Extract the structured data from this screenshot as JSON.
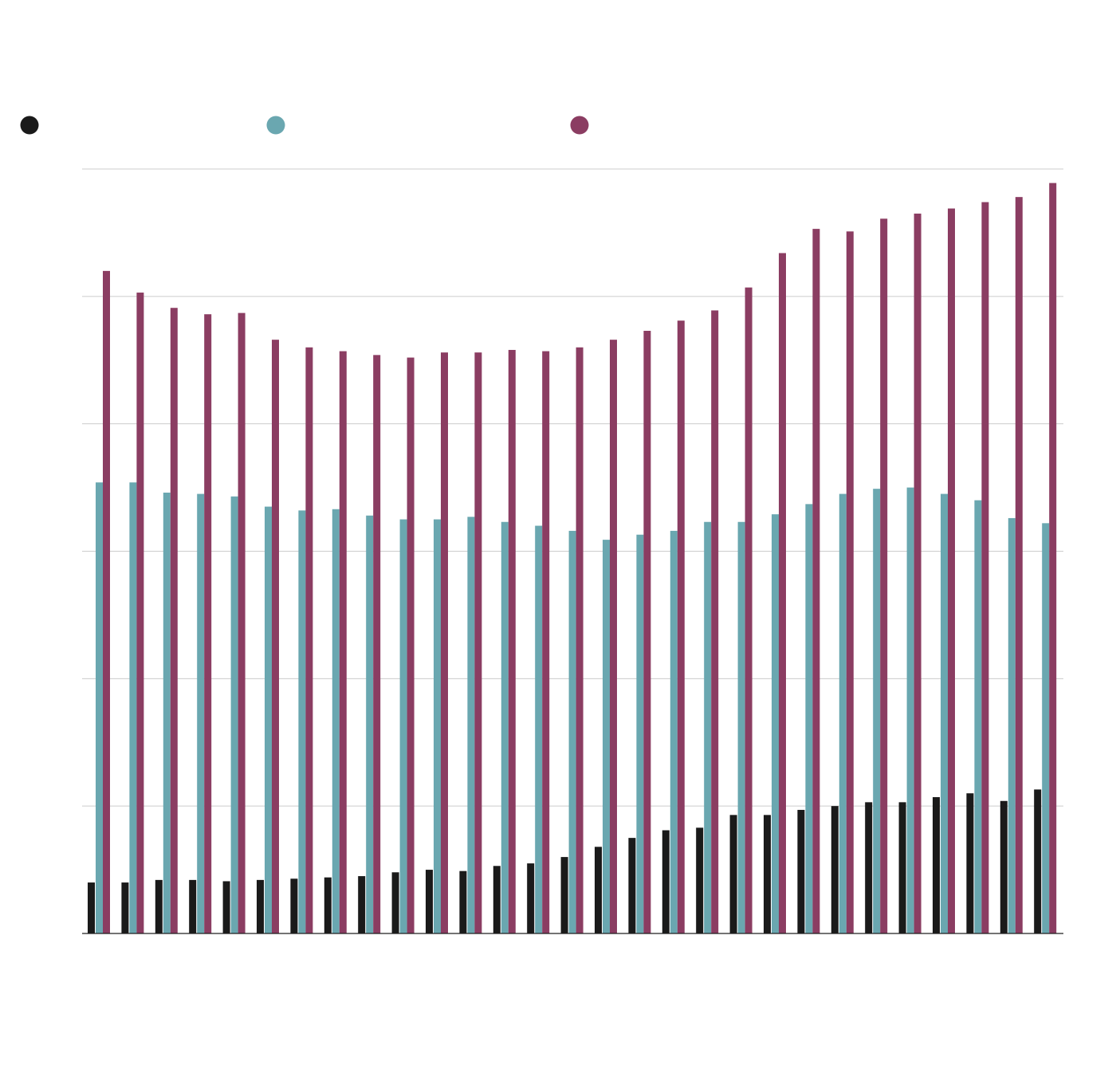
{
  "chart_data": {
    "type": "bar",
    "title": "",
    "subtitle": "",
    "xlabel": "",
    "ylabel": "",
    "ylim": [
      0,
      6
    ],
    "grid": true,
    "legend_position": "top-left",
    "categories": [
      "",
      "",
      "",
      "",
      "",
      "",
      "",
      "",
      "",
      "",
      "",
      "",
      "",
      "",
      "",
      "",
      "",
      "",
      "",
      "",
      "",
      "",
      "",
      "",
      "",
      "",
      "",
      "",
      ""
    ],
    "series": [
      {
        "name": "",
        "color": "#1a1a1a",
        "values": [
          0.4,
          0.4,
          0.42,
          0.42,
          0.41,
          0.42,
          0.43,
          0.44,
          0.45,
          0.48,
          0.5,
          0.49,
          0.53,
          0.55,
          0.6,
          0.68,
          0.75,
          0.81,
          0.83,
          0.93,
          0.93,
          0.97,
          1.0,
          1.03,
          1.03,
          1.07,
          1.1,
          1.04,
          1.13
        ]
      },
      {
        "name": "",
        "color": "#6aa7b0",
        "values": [
          3.54,
          3.54,
          3.46,
          3.45,
          3.43,
          3.35,
          3.32,
          3.33,
          3.28,
          3.25,
          3.25,
          3.27,
          3.23,
          3.2,
          3.16,
          3.09,
          3.13,
          3.16,
          3.23,
          3.23,
          3.29,
          3.37,
          3.45,
          3.49,
          3.5,
          3.45,
          3.4,
          3.26,
          3.22
        ]
      },
      {
        "name": "",
        "color": "#8b3d62",
        "values": [
          5.2,
          5.03,
          4.91,
          4.86,
          4.87,
          4.66,
          4.6,
          4.57,
          4.54,
          4.52,
          4.56,
          4.56,
          4.58,
          4.57,
          4.6,
          4.66,
          4.73,
          4.81,
          4.89,
          5.07,
          5.34,
          5.53,
          5.51,
          5.61,
          5.65,
          5.69,
          5.74,
          5.78,
          5.89
        ]
      }
    ]
  }
}
